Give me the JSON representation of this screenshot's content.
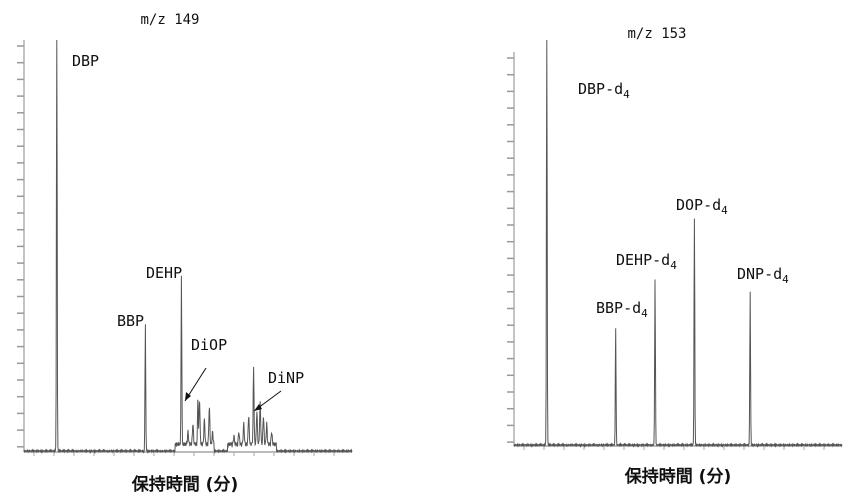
{
  "chart_data": [
    {
      "type": "line",
      "title": "m/z 149",
      "xlabel": "保持時間 (分)",
      "ylabel": "",
      "peaks": [
        {
          "label": "DBP",
          "x": 0.1,
          "height": 1.0
        },
        {
          "label": "BBP",
          "x": 0.37,
          "height": 0.31
        },
        {
          "label": "DEHP",
          "x": 0.48,
          "height": 0.41
        },
        {
          "label": "DiOP",
          "x": 0.53,
          "height": 0.11
        },
        {
          "label": "DiNP",
          "x": 0.7,
          "height": 0.1
        }
      ],
      "annotations": [
        {
          "text": "DiOP",
          "target": "isomer cluster"
        },
        {
          "text": "DiNP",
          "target": "isomer cluster"
        }
      ],
      "grid": false
    },
    {
      "type": "line",
      "title": "m/z 153",
      "xlabel": "保持時間 (分)",
      "ylabel": "",
      "peaks": [
        {
          "label": "DBP-d",
          "sub": "4",
          "x": 0.1,
          "height": 1.0
        },
        {
          "label": "BBP-d",
          "sub": "4",
          "x": 0.31,
          "height": 0.29
        },
        {
          "label": "DEHP-d",
          "sub": "4",
          "x": 0.43,
          "height": 0.41
        },
        {
          "label": "DOP-d",
          "sub": "4",
          "x": 0.55,
          "height": 0.56
        },
        {
          "label": "DNP-d",
          "sub": "4",
          "x": 0.72,
          "height": 0.38
        }
      ],
      "grid": false
    }
  ]
}
